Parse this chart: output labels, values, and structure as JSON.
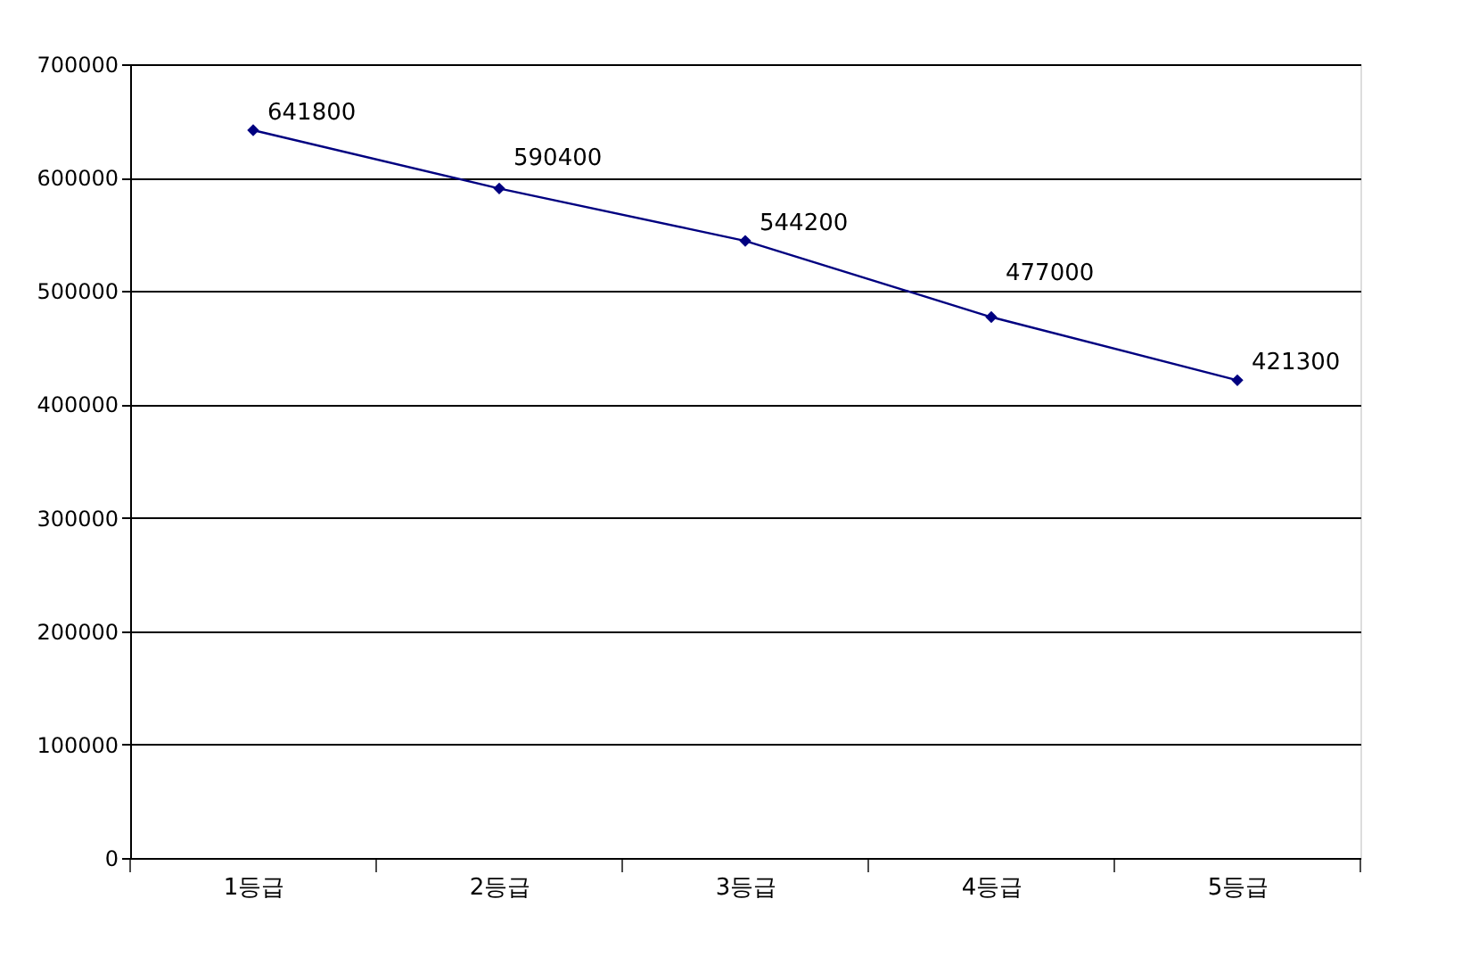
{
  "chart_data": {
    "type": "line",
    "categories": [
      "1등급",
      "2등급",
      "3등급",
      "4등급",
      "5등급"
    ],
    "series": [
      {
        "color": "#000080",
        "values": [
          641800,
          590400,
          544200,
          477000,
          421300
        ]
      }
    ],
    "ylim": [
      0,
      700000
    ],
    "yticks": [
      0,
      100000,
      200000,
      300000,
      400000,
      500000,
      600000,
      700000
    ],
    "grid": "y",
    "marker": "diamond",
    "line_style": "solid",
    "data_labels": true
  }
}
